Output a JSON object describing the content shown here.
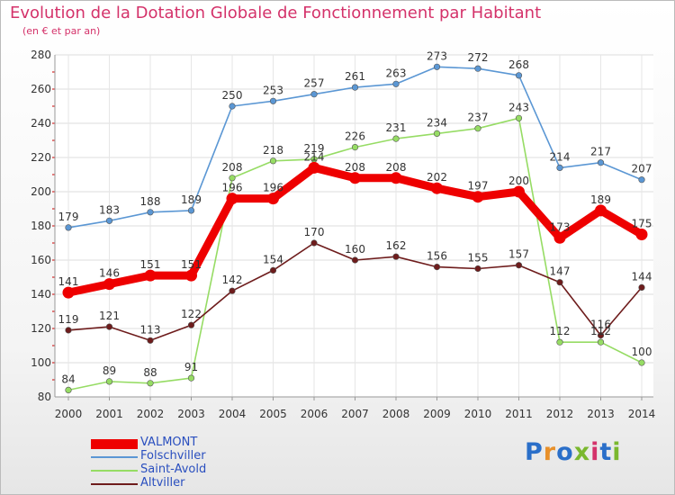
{
  "header": {
    "title": "Evolution de la Dotation Globale de Fonctionnement par Habitant",
    "subtitle": "(en € et par an)"
  },
  "brand": {
    "text": "Proxiti",
    "colors": [
      "#2a6fc9",
      "#e8902a",
      "#2a6fc9",
      "#7ab82e",
      "#d4326a",
      "#2a6fc9",
      "#7ab82e"
    ]
  },
  "chart_data": {
    "type": "line",
    "title": "Evolution de la Dotation Globale de Fonctionnement par Habitant",
    "subtitle": "(en € et par an)",
    "xlabel": "",
    "ylabel": "",
    "x": [
      "2000",
      "2001",
      "2002",
      "2003",
      "2004",
      "2005",
      "2006",
      "2007",
      "2008",
      "2009",
      "2010",
      "2011",
      "2012",
      "2013",
      "2014"
    ],
    "ylim": [
      80,
      280
    ],
    "yticks": [
      80,
      100,
      120,
      140,
      160,
      180,
      200,
      220,
      240,
      260,
      280
    ],
    "grid": true,
    "legend_position": "bottom-left",
    "series": [
      {
        "name": "VALMONT",
        "color": "#ee0000",
        "emphasis": true,
        "values": [
          141,
          146,
          151,
          151,
          196,
          196,
          214,
          208,
          208,
          202,
          197,
          200,
          173,
          189,
          175
        ]
      },
      {
        "name": "Folschviller",
        "color": "#5b97d4",
        "emphasis": false,
        "values": [
          179,
          183,
          188,
          189,
          250,
          253,
          257,
          261,
          263,
          273,
          272,
          268,
          214,
          217,
          207
        ]
      },
      {
        "name": "Saint-Avold",
        "color": "#96dc64",
        "emphasis": false,
        "values": [
          84,
          89,
          88,
          91,
          208,
          218,
          219,
          226,
          231,
          234,
          237,
          243,
          112,
          112,
          100
        ]
      },
      {
        "name": "Altviller",
        "color": "#6e1c1c",
        "emphasis": false,
        "values": [
          119,
          121,
          113,
          122,
          142,
          154,
          170,
          160,
          162,
          156,
          155,
          157,
          147,
          116,
          144
        ]
      }
    ]
  }
}
